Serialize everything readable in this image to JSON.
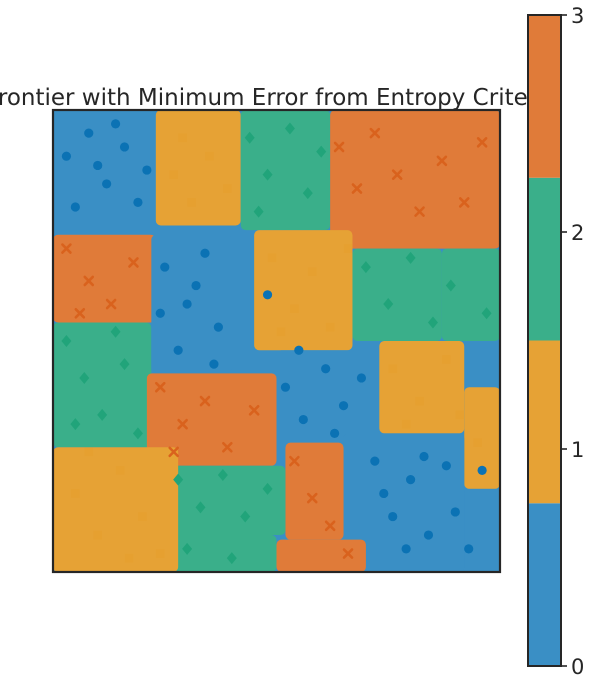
{
  "chart_data": {
    "type": "heatmap",
    "title": "Frontier with Minimum Error from Entropy Criterio",
    "xlabel": "",
    "ylabel": "",
    "xlim": [
      0,
      1
    ],
    "ylim": [
      0,
      1
    ],
    "grid": false,
    "classes": [
      0,
      1,
      2,
      3
    ],
    "class_colors": [
      "#3a8fc5",
      "#e6a235",
      "#3aaf8a",
      "#e07b39"
    ],
    "marker_colors": [
      "#0b72b4",
      "#e6a030",
      "#21a47a",
      "#d9621d"
    ],
    "markers": [
      "circle",
      "square",
      "diamond",
      "x"
    ],
    "regions": [
      {
        "x0": 0.0,
        "x1": 0.23,
        "y0": 0.27,
        "y1": 0.46,
        "class": 3
      },
      {
        "x0": 0.23,
        "x1": 0.42,
        "y0": 0.0,
        "y1": 0.25,
        "class": 1
      },
      {
        "x0": 0.42,
        "x1": 0.62,
        "y0": 0.0,
        "y1": 0.26,
        "class": 2
      },
      {
        "x0": 0.62,
        "x1": 1.0,
        "y0": 0.0,
        "y1": 0.3,
        "class": 3
      },
      {
        "x0": 0.87,
        "x1": 1.0,
        "y0": 0.3,
        "y1": 0.5,
        "class": 2
      },
      {
        "x0": 0.45,
        "x1": 0.67,
        "y0": 0.26,
        "y1": 0.52,
        "class": 1
      },
      {
        "x0": 0.67,
        "x1": 0.87,
        "y0": 0.3,
        "y1": 0.5,
        "class": 2
      },
      {
        "x0": 0.0,
        "x1": 0.22,
        "y0": 0.46,
        "y1": 0.73,
        "class": 2
      },
      {
        "x0": 0.22,
        "x1": 0.4,
        "y0": 0.27,
        "y1": 0.57,
        "class": 0
      },
      {
        "x0": 0.21,
        "x1": 0.5,
        "y0": 0.57,
        "y1": 0.77,
        "class": 3
      },
      {
        "x0": 0.5,
        "x1": 0.73,
        "y0": 0.52,
        "y1": 0.72,
        "class": 0
      },
      {
        "x0": 0.73,
        "x1": 0.92,
        "y0": 0.5,
        "y1": 0.7,
        "class": 1
      },
      {
        "x0": 0.92,
        "x1": 1.0,
        "y0": 0.6,
        "y1": 0.82,
        "class": 1
      },
      {
        "x0": 0.92,
        "x1": 1.0,
        "y0": 0.82,
        "y1": 1.0,
        "class": 0
      },
      {
        "x0": 0.65,
        "x1": 0.92,
        "y0": 0.7,
        "y1": 1.0,
        "class": 0
      },
      {
        "x0": 0.52,
        "x1": 0.65,
        "y0": 0.72,
        "y1": 0.93,
        "class": 3
      },
      {
        "x0": 0.26,
        "x1": 0.52,
        "y0": 0.77,
        "y1": 0.92,
        "class": 2
      },
      {
        "x0": 0.23,
        "x1": 0.5,
        "y0": 0.92,
        "y1": 1.0,
        "class": 2
      },
      {
        "x0": 0.0,
        "x1": 0.28,
        "y0": 0.73,
        "y1": 1.0,
        "class": 1
      },
      {
        "x0": 0.5,
        "x1": 0.7,
        "y0": 0.93,
        "y1": 1.0,
        "class": 3
      }
    ],
    "points": [
      {
        "x": 0.03,
        "y": 0.1,
        "class": 0
      },
      {
        "x": 0.08,
        "y": 0.05,
        "class": 0
      },
      {
        "x": 0.12,
        "y": 0.16,
        "class": 0
      },
      {
        "x": 0.05,
        "y": 0.21,
        "class": 0
      },
      {
        "x": 0.16,
        "y": 0.08,
        "class": 0
      },
      {
        "x": 0.19,
        "y": 0.2,
        "class": 0
      },
      {
        "x": 0.14,
        "y": 0.03,
        "class": 0
      },
      {
        "x": 0.1,
        "y": 0.12,
        "class": 0
      },
      {
        "x": 0.21,
        "y": 0.13,
        "class": 0
      },
      {
        "x": 0.25,
        "y": 0.34,
        "class": 0
      },
      {
        "x": 0.3,
        "y": 0.42,
        "class": 0
      },
      {
        "x": 0.34,
        "y": 0.31,
        "class": 0
      },
      {
        "x": 0.37,
        "y": 0.47,
        "class": 0
      },
      {
        "x": 0.28,
        "y": 0.52,
        "class": 0
      },
      {
        "x": 0.32,
        "y": 0.38,
        "class": 0
      },
      {
        "x": 0.24,
        "y": 0.44,
        "class": 0
      },
      {
        "x": 0.36,
        "y": 0.55,
        "class": 0
      },
      {
        "x": 0.48,
        "y": 0.4,
        "class": 0
      },
      {
        "x": 0.52,
        "y": 0.6,
        "class": 0
      },
      {
        "x": 0.56,
        "y": 0.67,
        "class": 0
      },
      {
        "x": 0.61,
        "y": 0.56,
        "class": 0
      },
      {
        "x": 0.65,
        "y": 0.64,
        "class": 0
      },
      {
        "x": 0.69,
        "y": 0.58,
        "class": 0
      },
      {
        "x": 0.55,
        "y": 0.52,
        "class": 0
      },
      {
        "x": 0.63,
        "y": 0.7,
        "class": 0
      },
      {
        "x": 0.72,
        "y": 0.76,
        "class": 0
      },
      {
        "x": 0.76,
        "y": 0.88,
        "class": 0
      },
      {
        "x": 0.8,
        "y": 0.8,
        "class": 0
      },
      {
        "x": 0.84,
        "y": 0.92,
        "class": 0
      },
      {
        "x": 0.88,
        "y": 0.77,
        "class": 0
      },
      {
        "x": 0.9,
        "y": 0.87,
        "class": 0
      },
      {
        "x": 0.93,
        "y": 0.95,
        "class": 0
      },
      {
        "x": 0.96,
        "y": 0.78,
        "class": 0
      },
      {
        "x": 0.79,
        "y": 0.95,
        "class": 0
      },
      {
        "x": 0.74,
        "y": 0.83,
        "class": 0
      },
      {
        "x": 0.83,
        "y": 0.75,
        "class": 0
      },
      {
        "x": 0.27,
        "y": 0.14,
        "class": 1
      },
      {
        "x": 0.31,
        "y": 0.2,
        "class": 1
      },
      {
        "x": 0.35,
        "y": 0.1,
        "class": 1
      },
      {
        "x": 0.39,
        "y": 0.17,
        "class": 1
      },
      {
        "x": 0.29,
        "y": 0.06,
        "class": 1
      },
      {
        "x": 0.05,
        "y": 0.83,
        "class": 1
      },
      {
        "x": 0.1,
        "y": 0.92,
        "class": 1
      },
      {
        "x": 0.15,
        "y": 0.78,
        "class": 1
      },
      {
        "x": 0.2,
        "y": 0.88,
        "class": 1
      },
      {
        "x": 0.24,
        "y": 0.96,
        "class": 1
      },
      {
        "x": 0.08,
        "y": 0.74,
        "class": 1
      },
      {
        "x": 0.17,
        "y": 0.97,
        "class": 1
      },
      {
        "x": 0.49,
        "y": 0.32,
        "class": 1
      },
      {
        "x": 0.54,
        "y": 0.43,
        "class": 1
      },
      {
        "x": 0.58,
        "y": 0.35,
        "class": 1
      },
      {
        "x": 0.62,
        "y": 0.47,
        "class": 1
      },
      {
        "x": 0.66,
        "y": 0.3,
        "class": 1
      },
      {
        "x": 0.51,
        "y": 0.48,
        "class": 1
      },
      {
        "x": 0.76,
        "y": 0.56,
        "class": 1
      },
      {
        "x": 0.82,
        "y": 0.63,
        "class": 1
      },
      {
        "x": 0.88,
        "y": 0.54,
        "class": 1
      },
      {
        "x": 0.91,
        "y": 0.66,
        "class": 1
      },
      {
        "x": 0.95,
        "y": 0.72,
        "class": 1
      },
      {
        "x": 0.79,
        "y": 0.68,
        "class": 1
      },
      {
        "x": 0.44,
        "y": 0.06,
        "class": 2
      },
      {
        "x": 0.48,
        "y": 0.14,
        "class": 2
      },
      {
        "x": 0.53,
        "y": 0.04,
        "class": 2
      },
      {
        "x": 0.57,
        "y": 0.18,
        "class": 2
      },
      {
        "x": 0.6,
        "y": 0.09,
        "class": 2
      },
      {
        "x": 0.46,
        "y": 0.22,
        "class": 2
      },
      {
        "x": 0.03,
        "y": 0.5,
        "class": 2
      },
      {
        "x": 0.07,
        "y": 0.58,
        "class": 2
      },
      {
        "x": 0.11,
        "y": 0.66,
        "class": 2
      },
      {
        "x": 0.16,
        "y": 0.55,
        "class": 2
      },
      {
        "x": 0.19,
        "y": 0.7,
        "class": 2
      },
      {
        "x": 0.05,
        "y": 0.68,
        "class": 2
      },
      {
        "x": 0.14,
        "y": 0.48,
        "class": 2
      },
      {
        "x": 0.7,
        "y": 0.34,
        "class": 2
      },
      {
        "x": 0.75,
        "y": 0.42,
        "class": 2
      },
      {
        "x": 0.8,
        "y": 0.32,
        "class": 2
      },
      {
        "x": 0.85,
        "y": 0.46,
        "class": 2
      },
      {
        "x": 0.89,
        "y": 0.38,
        "class": 2
      },
      {
        "x": 0.97,
        "y": 0.44,
        "class": 2
      },
      {
        "x": 0.28,
        "y": 0.8,
        "class": 2
      },
      {
        "x": 0.33,
        "y": 0.86,
        "class": 2
      },
      {
        "x": 0.38,
        "y": 0.79,
        "class": 2
      },
      {
        "x": 0.43,
        "y": 0.88,
        "class": 2
      },
      {
        "x": 0.48,
        "y": 0.82,
        "class": 2
      },
      {
        "x": 0.3,
        "y": 0.95,
        "class": 2
      },
      {
        "x": 0.4,
        "y": 0.97,
        "class": 2
      },
      {
        "x": 0.64,
        "y": 0.08,
        "class": 3
      },
      {
        "x": 0.68,
        "y": 0.17,
        "class": 3
      },
      {
        "x": 0.72,
        "y": 0.05,
        "class": 3
      },
      {
        "x": 0.77,
        "y": 0.14,
        "class": 3
      },
      {
        "x": 0.82,
        "y": 0.22,
        "class": 3
      },
      {
        "x": 0.87,
        "y": 0.11,
        "class": 3
      },
      {
        "x": 0.92,
        "y": 0.2,
        "class": 3
      },
      {
        "x": 0.96,
        "y": 0.07,
        "class": 3
      },
      {
        "x": 0.03,
        "y": 0.3,
        "class": 3
      },
      {
        "x": 0.08,
        "y": 0.37,
        "class": 3
      },
      {
        "x": 0.13,
        "y": 0.42,
        "class": 3
      },
      {
        "x": 0.18,
        "y": 0.33,
        "class": 3
      },
      {
        "x": 0.06,
        "y": 0.44,
        "class": 3
      },
      {
        "x": 0.24,
        "y": 0.6,
        "class": 3
      },
      {
        "x": 0.29,
        "y": 0.68,
        "class": 3
      },
      {
        "x": 0.34,
        "y": 0.63,
        "class": 3
      },
      {
        "x": 0.39,
        "y": 0.73,
        "class": 3
      },
      {
        "x": 0.45,
        "y": 0.65,
        "class": 3
      },
      {
        "x": 0.27,
        "y": 0.74,
        "class": 3
      },
      {
        "x": 0.54,
        "y": 0.76,
        "class": 3
      },
      {
        "x": 0.58,
        "y": 0.84,
        "class": 3
      },
      {
        "x": 0.62,
        "y": 0.9,
        "class": 3
      },
      {
        "x": 0.66,
        "y": 0.96,
        "class": 3
      }
    ],
    "colorbar": {
      "ticks": [
        "0",
        "1",
        "2",
        "3"
      ],
      "segment_colors": [
        "#3a8fc5",
        "#e6a235",
        "#3aaf8a",
        "#e07b39"
      ]
    }
  }
}
